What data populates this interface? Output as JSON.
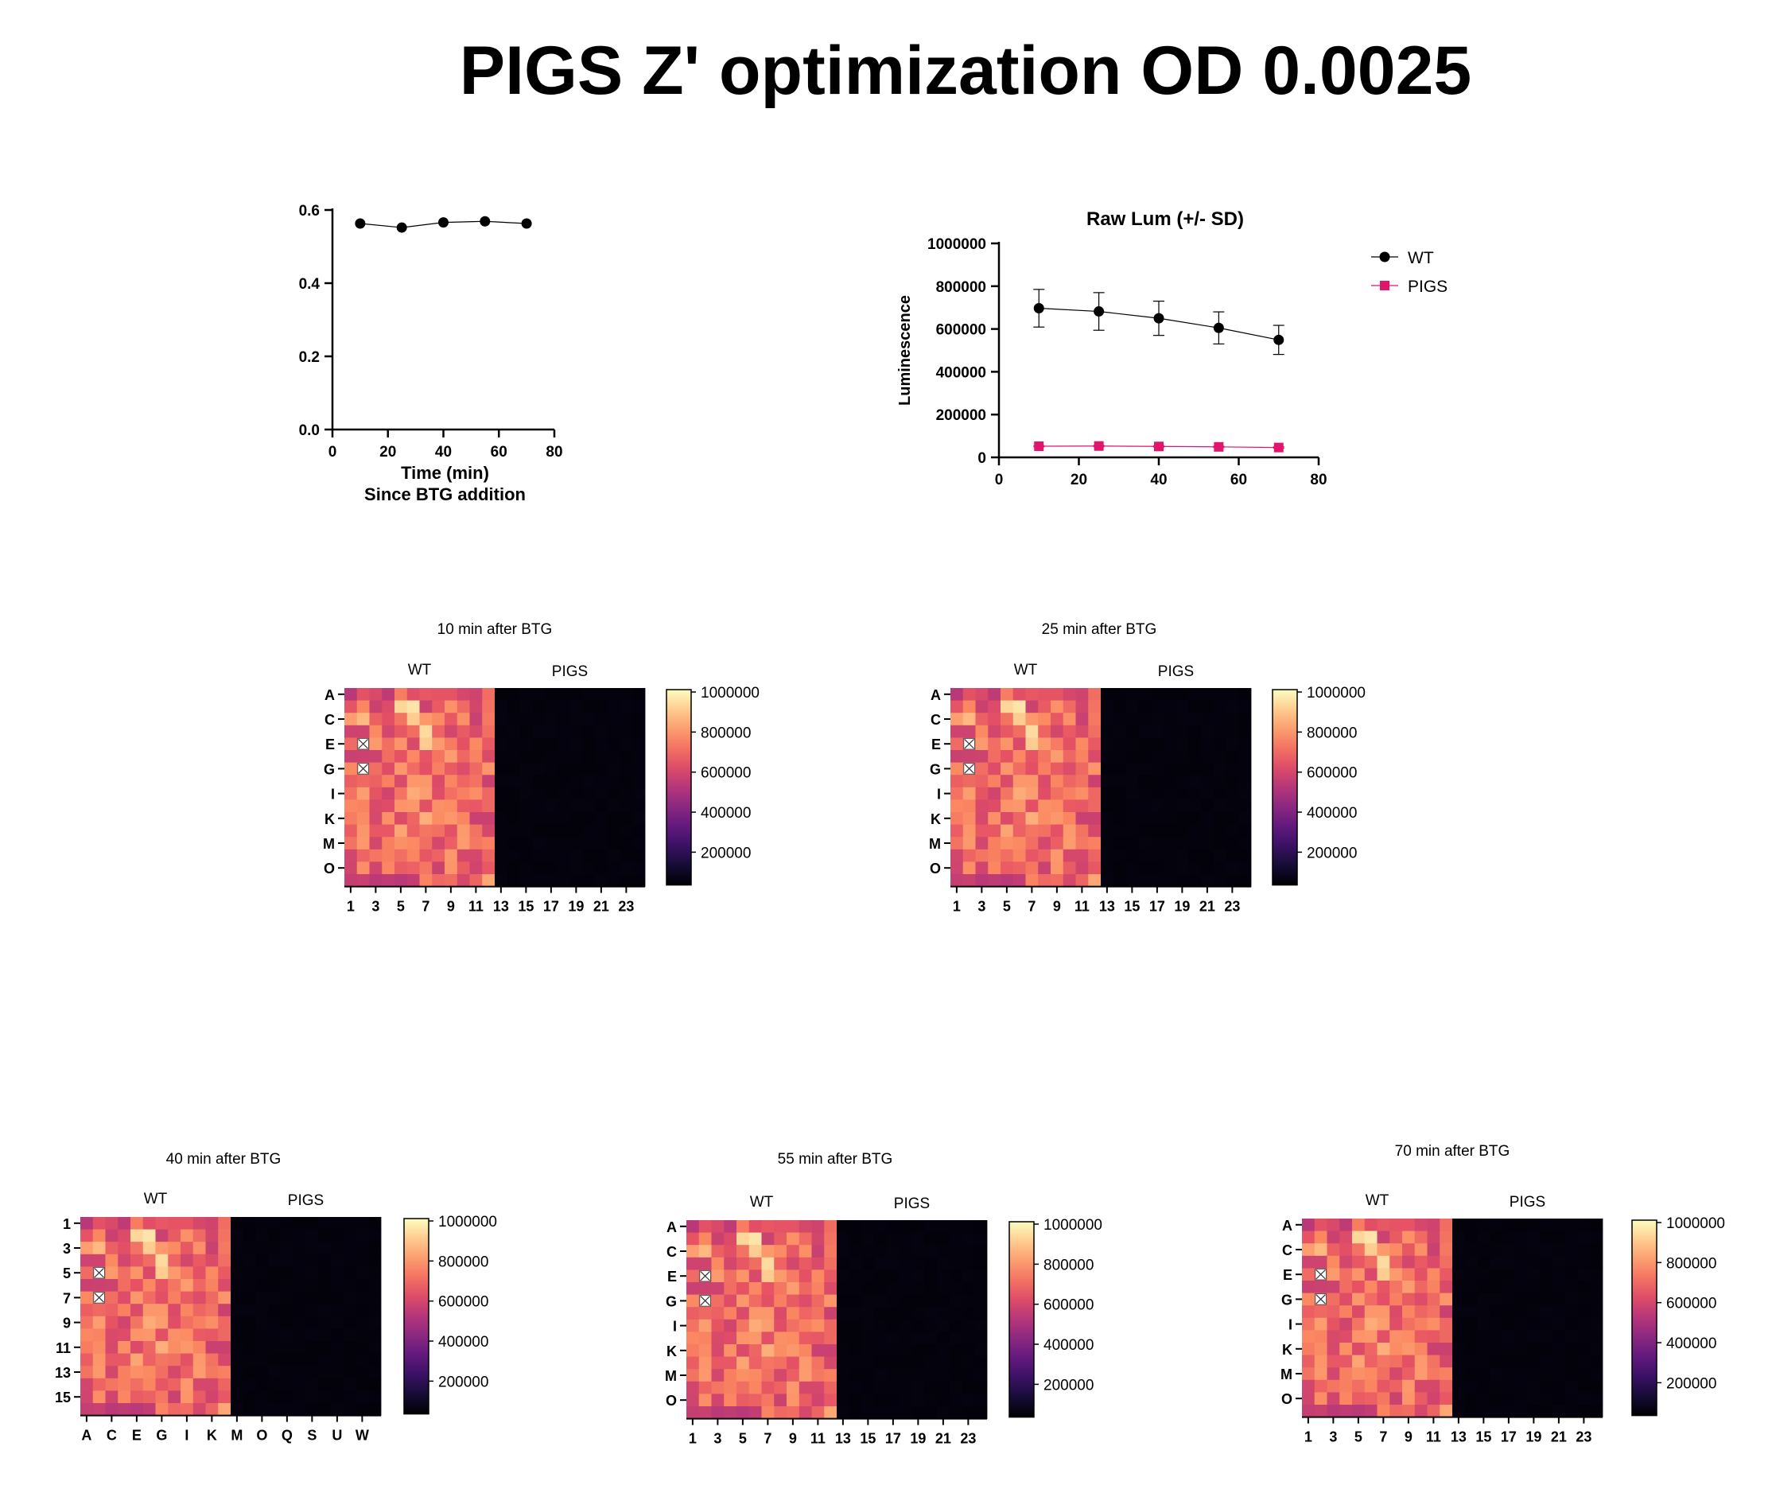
{
  "page_title": "PIGS Z' optimization OD 0.0025",
  "chart_data": [
    {
      "id": "zprime",
      "type": "line",
      "title": "",
      "xlabel": [
        "Time (min)",
        "Since BTG addition"
      ],
      "ylabel": "",
      "xlim": [
        0,
        80
      ],
      "ylim": [
        0,
        0.6
      ],
      "xticks": [
        "0",
        "20",
        "40",
        "60",
        "80"
      ],
      "yticks": [
        "0.0",
        "0.2",
        "0.4",
        "0.6"
      ],
      "series": [
        {
          "x": [
            10,
            25,
            40,
            55,
            70
          ],
          "y": [
            0.563,
            0.552,
            0.566,
            0.569,
            0.563
          ],
          "color": "#000000"
        }
      ]
    },
    {
      "id": "rawlum",
      "type": "line",
      "title": "Raw Lum (+/- SD)",
      "xlabel": "",
      "ylabel": "Luminescence",
      "xlim": [
        0,
        80
      ],
      "ylim": [
        0,
        1000000
      ],
      "xticks": [
        "0",
        "20",
        "40",
        "60",
        "80"
      ],
      "yticks": [
        "0",
        "200000",
        "400000",
        "600000",
        "800000",
        "1000000"
      ],
      "legend_position": "top-right",
      "series": [
        {
          "name": "WT",
          "color": "#000000",
          "marker": "circle",
          "x": [
            10,
            25,
            40,
            55,
            70
          ],
          "y": [
            697000,
            682000,
            650000,
            605000,
            549000
          ],
          "sd": [
            88000,
            88000,
            80000,
            75000,
            68000
          ]
        },
        {
          "name": "PIGS",
          "color": "#e0156b",
          "marker": "square",
          "x": [
            10,
            25,
            40,
            55,
            70
          ],
          "y": [
            52000,
            53000,
            51000,
            49000,
            46000
          ],
          "sd": [
            3000,
            3000,
            3000,
            3000,
            3000
          ]
        }
      ]
    },
    {
      "id": "hm10",
      "type": "heatmap",
      "title": "10 min after BTG",
      "seed": 11,
      "cycle": [
        0.0,
        0.0,
        0.02,
        0.0,
        0.0
      ],
      "groups": [
        "WT",
        "PIGS"
      ],
      "yticks": [
        "A",
        "C",
        "E",
        "G",
        "I",
        "K",
        "M",
        "O"
      ],
      "xticks": [
        "1",
        "3",
        "5",
        "7",
        "9",
        "11",
        "13",
        "15",
        "17",
        "19",
        "21",
        "23"
      ],
      "colorbar": [
        "1000000",
        "800000",
        "600000",
        "400000",
        "200000"
      ],
      "excluded_wells": [
        [
          4,
          1
        ],
        [
          6,
          1
        ]
      ]
    },
    {
      "id": "hm25",
      "type": "heatmap",
      "title": "25 min after BTG",
      "seed": 11,
      "cycle": [
        0.0,
        0.0,
        0.02,
        0.0,
        0.0
      ],
      "groups": [
        "WT",
        "PIGS"
      ],
      "yticks": [
        "A",
        "C",
        "E",
        "G",
        "I",
        "K",
        "M",
        "O"
      ],
      "xticks": [
        "1",
        "3",
        "5",
        "7",
        "9",
        "11",
        "13",
        "15",
        "17",
        "19",
        "21",
        "23"
      ],
      "colorbar": [
        "1000000",
        "800000",
        "600000",
        "400000",
        "200000"
      ],
      "excluded_wells": [
        [
          4,
          1
        ],
        [
          6,
          1
        ]
      ]
    },
    {
      "id": "hm40",
      "type": "heatmap",
      "title": "40 min after BTG",
      "seed": 11,
      "groups": [
        "WT",
        "PIGS"
      ],
      "yticks": [
        "1",
        "3",
        "5",
        "7",
        "9",
        "11",
        "13",
        "15"
      ],
      "xticks": [
        "A",
        "C",
        "E",
        "G",
        "I",
        "K",
        "M",
        "O",
        "Q",
        "S",
        "U",
        "W"
      ],
      "colorbar": [
        "1000000",
        "800000",
        "600000",
        "400000",
        "200000"
      ],
      "excluded_wells": [
        [
          4,
          1
        ],
        [
          6,
          1
        ]
      ]
    },
    {
      "id": "hm55",
      "type": "heatmap",
      "title": "55 min after BTG",
      "seed": 11,
      "groups": [
        "WT",
        "PIGS"
      ],
      "yticks": [
        "A",
        "C",
        "E",
        "G",
        "I",
        "K",
        "M",
        "O"
      ],
      "xticks": [
        "1",
        "3",
        "5",
        "7",
        "9",
        "11",
        "13",
        "15",
        "17",
        "19",
        "21",
        "23"
      ],
      "colorbar": [
        "1000000",
        "800000",
        "600000",
        "400000",
        "200000"
      ],
      "excluded_wells": [
        [
          4,
          1
        ],
        [
          6,
          1
        ]
      ]
    },
    {
      "id": "hm70",
      "type": "heatmap",
      "title": "70 min after BTG",
      "seed": 11,
      "groups": [
        "WT",
        "PIGS"
      ],
      "yticks": [
        "A",
        "C",
        "E",
        "G",
        "I",
        "K",
        "M",
        "O"
      ],
      "xticks": [
        "1",
        "3",
        "5",
        "7",
        "9",
        "11",
        "13",
        "15",
        "17",
        "19",
        "21",
        "23"
      ],
      "colorbar": [
        "1000000",
        "800000",
        "600000",
        "400000",
        "200000"
      ],
      "excluded_wells": [
        [
          4,
          1
        ],
        [
          6,
          1
        ]
      ]
    }
  ]
}
